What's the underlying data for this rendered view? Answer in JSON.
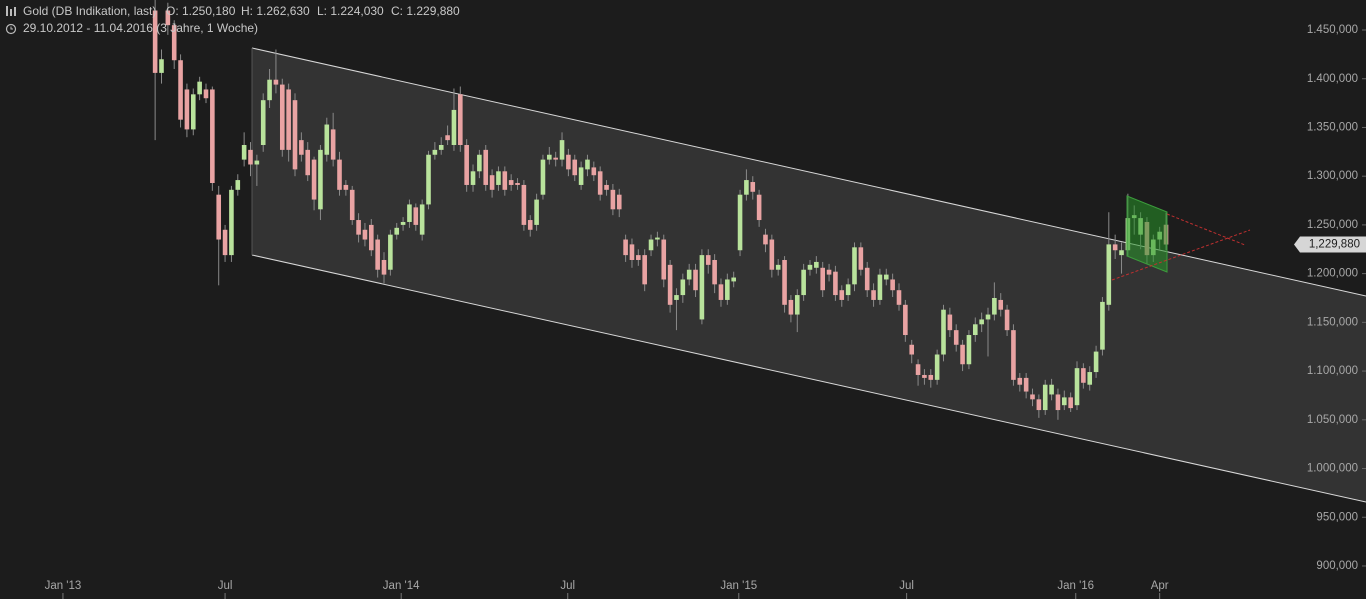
{
  "chart_data": {
    "type": "candlestick",
    "title": "Gold (DB Indikation, last)",
    "ohlc_info": [
      "O: 1.250,180",
      "H: 1.262,630",
      "L: 1.224,030",
      "C: 1.229,880"
    ],
    "subtitle": "29.10.2012 - 11.04.2016 (3 Jahre, 1 Woche)",
    "up_color": "#b9e39c",
    "down_color": "#e9a3a3",
    "open": [
      1470,
      1406,
      1470,
      1455,
      1419,
      1389,
      1348,
      1384,
      1389,
      1389,
      1281,
      1245,
      1219,
      1286,
      1317,
      1327,
      1312,
      1332,
      1378,
      1399,
      1394,
      1389,
      1378,
      1337,
      1327,
      1317,
      1266,
      1322,
      1348,
      1317,
      1291,
      1286,
      1255,
      1245,
      1250,
      1235,
      1214,
      1204,
      1240,
      1250,
      1253,
      1268,
      1240,
      1271,
      1322,
      1327,
      1342,
      1332,
      1384,
      1332,
      1291,
      1305,
      1327,
      1301,
      1291,
      1305,
      1296,
      1293,
      1291,
      1255,
      1250,
      1281,
      1317,
      1319,
      1317,
      1322,
      1317,
      1291,
      1307,
      1309,
      1305,
      1291,
      1286,
      1281,
      1235,
      1230,
      1219,
      1219,
      1224,
      1235,
      1235,
      1209,
      1173,
      1178,
      1194,
      1204,
      1153,
      1219,
      1214,
      1189,
      1173,
      1192,
      1224,
      1281,
      1294,
      1281,
      1240,
      1235,
      1204,
      1214,
      1173,
      1158,
      1178,
      1204,
      1206,
      1206,
      1204,
      1202,
      1183,
      1178,
      1189,
      1227,
      1206,
      1183,
      1173,
      1194,
      1194,
      1183,
      1168,
      1127,
      1107,
      1096,
      1096,
      1091,
      1117,
      1158,
      1142,
      1127,
      1107,
      1137,
      1148,
      1153,
      1158,
      1173,
      1163,
      1142,
      1093,
      1093,
      1076,
      1071,
      1060,
      1076,
      1076,
      1065,
      1073,
      1065,
      1103,
      1086,
      1099,
      1122,
      1168,
      1230,
      1219,
      1224,
      1257,
      1240,
      1253,
      1219,
      1235,
      1250.18
    ],
    "high": [
      1481,
      1430,
      1478,
      1460,
      1425,
      1395,
      1390,
      1402,
      1395,
      1392,
      1290,
      1250,
      1290,
      1302,
      1345,
      1335,
      1322,
      1385,
      1410,
      1430,
      1400,
      1395,
      1385,
      1345,
      1335,
      1320,
      1332,
      1360,
      1365,
      1325,
      1296,
      1290,
      1262,
      1252,
      1256,
      1240,
      1222,
      1245,
      1252,
      1258,
      1276,
      1272,
      1276,
      1326,
      1335,
      1340,
      1352,
      1390,
      1392,
      1338,
      1312,
      1327,
      1332,
      1307,
      1310,
      1310,
      1302,
      1298,
      1296,
      1260,
      1282,
      1322,
      1330,
      1325,
      1345,
      1328,
      1322,
      1315,
      1322,
      1315,
      1310,
      1296,
      1292,
      1287,
      1240,
      1236,
      1225,
      1225,
      1240,
      1243,
      1240,
      1214,
      1185,
      1200,
      1210,
      1210,
      1225,
      1225,
      1220,
      1195,
      1200,
      1202,
      1286,
      1307,
      1300,
      1286,
      1246,
      1240,
      1215,
      1218,
      1178,
      1184,
      1210,
      1214,
      1218,
      1212,
      1210,
      1208,
      1188,
      1195,
      1232,
      1232,
      1212,
      1190,
      1205,
      1205,
      1200,
      1190,
      1173,
      1132,
      1112,
      1102,
      1102,
      1122,
      1168,
      1165,
      1148,
      1132,
      1142,
      1155,
      1160,
      1165,
      1191,
      1180,
      1168,
      1148,
      1098,
      1098,
      1082,
      1076,
      1091,
      1092,
      1082,
      1080,
      1078,
      1110,
      1108,
      1105,
      1126,
      1176,
      1263,
      1240,
      1232,
      1282,
      1270,
      1263,
      1258,
      1240,
      1248,
      1262.63
    ],
    "low": [
      1337,
      1395,
      1445,
      1410,
      1350,
      1340,
      1342,
      1378,
      1375,
      1285,
      1188,
      1212,
      1212,
      1280,
      1310,
      1300,
      1290,
      1325,
      1370,
      1385,
      1320,
      1315,
      1300,
      1315,
      1295,
      1265,
      1255,
      1315,
      1310,
      1280,
      1280,
      1250,
      1232,
      1228,
      1218,
      1196,
      1190,
      1198,
      1235,
      1244,
      1247,
      1244,
      1234,
      1266,
      1317,
      1322,
      1332,
      1326,
      1325,
      1284,
      1284,
      1298,
      1285,
      1278,
      1285,
      1280,
      1285,
      1286,
      1244,
      1238,
      1244,
      1276,
      1312,
      1310,
      1310,
      1300,
      1295,
      1286,
      1300,
      1295,
      1275,
      1280,
      1260,
      1258,
      1212,
      1206,
      1208,
      1182,
      1218,
      1228,
      1186,
      1160,
      1142,
      1170,
      1188,
      1176,
      1148,
      1200,
      1180,
      1166,
      1168,
      1186,
      1218,
      1275,
      1276,
      1248,
      1222,
      1196,
      1198,
      1160,
      1150,
      1140,
      1172,
      1198,
      1200,
      1176,
      1192,
      1172,
      1166,
      1172,
      1182,
      1198,
      1176,
      1166,
      1168,
      1188,
      1176,
      1162,
      1130,
      1108,
      1085,
      1086,
      1083,
      1086,
      1110,
      1135,
      1120,
      1100,
      1102,
      1130,
      1140,
      1115,
      1152,
      1156,
      1136,
      1085,
      1079,
      1072,
      1064,
      1052,
      1055,
      1070,
      1050,
      1060,
      1058,
      1060,
      1082,
      1080,
      1093,
      1116,
      1162,
      1215,
      1200,
      1218,
      1240,
      1225,
      1210,
      1212,
      1225,
      1224.03
    ],
    "close": [
      1406,
      1420,
      1455,
      1419,
      1358,
      1348,
      1384,
      1397,
      1380,
      1293,
      1235,
      1219,
      1286,
      1296,
      1332,
      1312,
      1316,
      1378,
      1399,
      1394,
      1327,
      1327,
      1307,
      1322,
      1301,
      1276,
      1327,
      1353,
      1317,
      1286,
      1286,
      1255,
      1240,
      1235,
      1224,
      1204,
      1199,
      1240,
      1247,
      1253,
      1271,
      1250,
      1271,
      1322,
      1327,
      1332,
      1337,
      1368,
      1332,
      1291,
      1305,
      1322,
      1291,
      1286,
      1305,
      1286,
      1291,
      1291,
      1250,
      1245,
      1276,
      1317,
      1322,
      1317,
      1337,
      1307,
      1301,
      1309,
      1317,
      1301,
      1281,
      1286,
      1266,
      1266,
      1219,
      1214,
      1214,
      1189,
      1235,
      1237,
      1194,
      1168,
      1178,
      1194,
      1204,
      1183,
      1219,
      1209,
      1189,
      1173,
      1194,
      1196,
      1281,
      1296,
      1284,
      1255,
      1230,
      1204,
      1209,
      1168,
      1158,
      1178,
      1204,
      1209,
      1212,
      1183,
      1199,
      1178,
      1173,
      1189,
      1227,
      1204,
      1183,
      1173,
      1199,
      1199,
      1183,
      1168,
      1137,
      1117,
      1096,
      1093,
      1091,
      1117,
      1163,
      1142,
      1127,
      1107,
      1137,
      1148,
      1153,
      1158,
      1175,
      1163,
      1142,
      1091,
      1086,
      1079,
      1071,
      1060,
      1086,
      1086,
      1060,
      1073,
      1062,
      1103,
      1088,
      1099,
      1120,
      1171,
      1230,
      1224,
      1224,
      1257,
      1260,
      1257,
      1219,
      1235,
      1243,
      1229.88
    ],
    "last_price": {
      "value": 1229.88,
      "label": "1,229,880"
    },
    "xlim": [
      -24.4,
      178.5
    ],
    "xticks": [
      {
        "value": -14.5,
        "label": "Jan '13"
      },
      {
        "value": 11.0,
        "label": "Jul"
      },
      {
        "value": 38.7,
        "label": "Jan '14"
      },
      {
        "value": 64.9,
        "label": "Jul"
      },
      {
        "value": 91.8,
        "label": "Jan '15"
      },
      {
        "value": 118.2,
        "label": "Jul"
      },
      {
        "value": 144.8,
        "label": "Jan '16"
      },
      {
        "value": 158.0,
        "label": "Apr"
      }
    ],
    "ylim": [
      885.6,
      1480.8
    ],
    "yticks": [
      {
        "value": 1450,
        "label": "1.450,000"
      },
      {
        "value": 1400,
        "label": "1.400,000"
      },
      {
        "value": 1350,
        "label": "1.350,000"
      },
      {
        "value": 1300,
        "label": "1.300,000"
      },
      {
        "value": 1250,
        "label": "1.250,000"
      },
      {
        "value": 1200,
        "label": "1.200,000"
      },
      {
        "value": 1150,
        "label": "1.150,000"
      },
      {
        "value": 1100,
        "label": "1.100,000"
      },
      {
        "value": 1050,
        "label": "1.050,000"
      },
      {
        "value": 1000,
        "label": "1.000,000"
      },
      {
        "value": 950,
        "label": "950,000"
      },
      {
        "value": 900,
        "label": "900,000"
      }
    ]
  }
}
